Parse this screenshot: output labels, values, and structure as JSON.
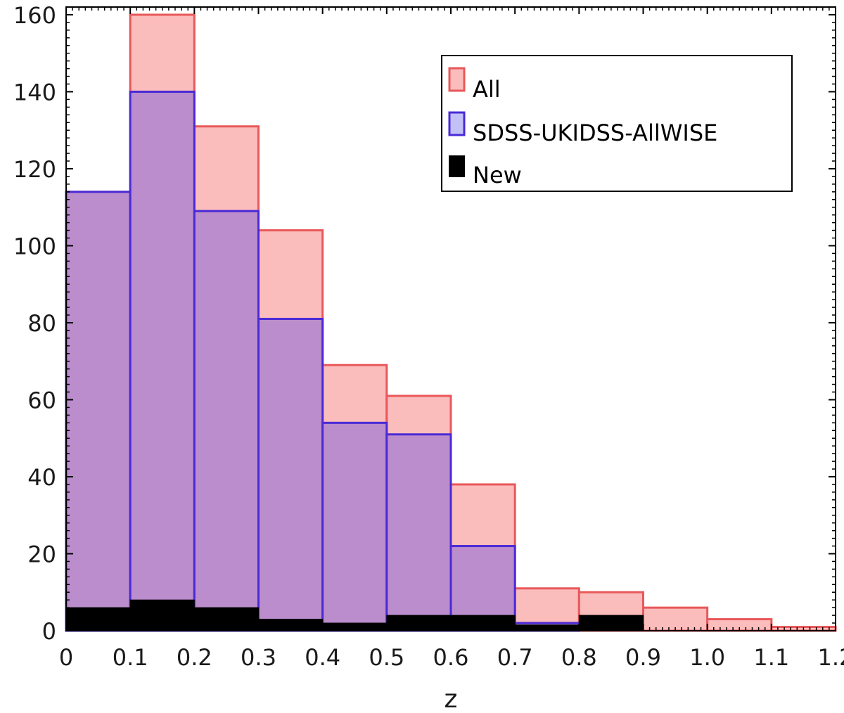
{
  "chart_data": {
    "type": "bar",
    "subtype": "histogram-overlaid",
    "xlabel": "z",
    "ylabel": "",
    "xlim": [
      0,
      1.2
    ],
    "ylim": [
      0,
      162
    ],
    "x_ticks": [
      "0",
      "0.1",
      "0.2",
      "0.3",
      "0.4",
      "0.5",
      "0.6",
      "0.7",
      "0.8",
      "0.9",
      "1.0",
      "1.1",
      "1.2"
    ],
    "y_ticks": [
      "0",
      "20",
      "40",
      "60",
      "80",
      "100",
      "120",
      "140",
      "160"
    ],
    "bin_edges": [
      0,
      0.1,
      0.2,
      0.3,
      0.4,
      0.5,
      0.6,
      0.7,
      0.8,
      0.9,
      1.0,
      1.1,
      1.2
    ],
    "legend_position": "top-right",
    "grid": false,
    "series": [
      {
        "name": "All",
        "fill": "#fbbcbc",
        "stroke": "#e8585a",
        "values": [
          114,
          160,
          131,
          104,
          69,
          61,
          38,
          11,
          10,
          6,
          3,
          1
        ]
      },
      {
        "name": "SDSS-UKIDSS-AllWISE",
        "fill": "#bb8dcc",
        "stroke": "#4a2ad6",
        "legend_fill": "#c3c0f8",
        "values": [
          114,
          140,
          109,
          81,
          54,
          51,
          22,
          2,
          0,
          0,
          0,
          0
        ]
      },
      {
        "name": "New",
        "fill": "#000000",
        "stroke": "#000000",
        "values": [
          6,
          8,
          6,
          3,
          2,
          4,
          4,
          1.5,
          4,
          0,
          0,
          0
        ]
      }
    ]
  }
}
